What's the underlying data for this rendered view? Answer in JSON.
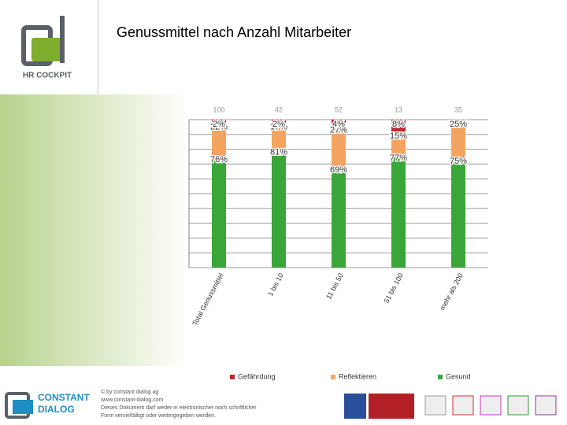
{
  "slide": {
    "logo": "HR COCKPIT",
    "footer_brand_1": "CONSTANT",
    "footer_brand_2": "DIALOG",
    "footer_lines": [
      "© by constant dialog ag",
      "www.constant-dialog.com",
      "Dieses Dokument darf weder in elektronischer noch schriftlicher",
      "Form vervielfältigt oder weitergegeben werden."
    ]
  },
  "chart_data": {
    "type": "stacked_bar",
    "title": "Genussmittel nach Anzahl Mitarbeiter",
    "categories": [
      "Total Genussmittel",
      "1 bis 10",
      "11 bis 50",
      "51 bis 100",
      "mehr als 200"
    ],
    "sample_sizes": [
      100,
      42,
      52,
      13,
      35
    ],
    "series": [
      {
        "name": "Gesund",
        "color": "#3aa63a",
        "values": [
          76,
          81,
          69,
          77,
          75
        ],
        "value_labels": [
          "76%",
          "81%",
          "69%",
          "77%",
          "75%"
        ]
      },
      {
        "name": "Reflektieren",
        "color": "#f4a460",
        "values": [
          22,
          17,
          27,
          15,
          25
        ],
        "value_labels": [
          "22%",
          "17%",
          "27%",
          "15%",
          "25%"
        ]
      },
      {
        "name": "Gefährdung",
        "color": "#c0282d",
        "values": [
          2,
          2,
          4,
          8,
          0
        ],
        "value_labels": [
          "2%",
          "2%",
          "4%",
          "8%",
          null
        ]
      }
    ],
    "ylim": [
      0,
      100
    ],
    "yticks": [
      0,
      10,
      20,
      30,
      40,
      50,
      60,
      70,
      80,
      90,
      100
    ],
    "grid": true
  }
}
